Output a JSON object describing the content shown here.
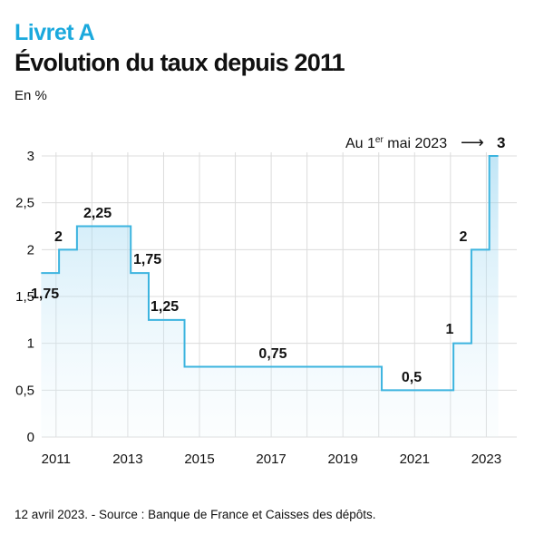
{
  "colors": {
    "accent": "#1ba9dd",
    "line": "#3cb4df",
    "grid": "#dcdcdc",
    "text": "#111111"
  },
  "header": {
    "kicker": "Livret A",
    "title": "Évolution du taux depuis 2011",
    "unit": "En %"
  },
  "annotation": {
    "prefix": "Au 1",
    "sup": "er",
    "suffix": " mai 2023",
    "arrow": "⟶",
    "value": "3"
  },
  "footer": {
    "source": "12 avril 2023. - Source : Banque de France et Caisses des dépôts."
  },
  "chart_data": {
    "type": "area",
    "step": true,
    "title": "Évolution du taux depuis 2011",
    "ylabel": "En %",
    "xlim": [
      2010.6,
      2023.85
    ],
    "ylim": [
      0,
      3
    ],
    "grid": true,
    "x_ticks": [
      "2011",
      "2013",
      "2015",
      "2017",
      "2019",
      "2021",
      "2023"
    ],
    "y_ticks": [
      "0",
      "0,5",
      "1",
      "1,5",
      "2",
      "2,5",
      "3"
    ],
    "series": [
      {
        "steps": [
          {
            "start": "2010-08-01",
            "end": "2011-02-01",
            "value": 1.75
          },
          {
            "start": "2011-02-01",
            "end": "2011-08-01",
            "value": 2
          },
          {
            "start": "2011-08-01",
            "end": "2013-02-01",
            "value": 2.25
          },
          {
            "start": "2013-02-01",
            "end": "2013-08-01",
            "value": 1.75
          },
          {
            "start": "2013-08-01",
            "end": "2014-08-01",
            "value": 1.25
          },
          {
            "start": "2014-08-01",
            "end": "2020-02-01",
            "value": 0.75
          },
          {
            "start": "2020-02-01",
            "end": "2022-02-01",
            "value": 0.5
          },
          {
            "start": "2022-02-01",
            "end": "2022-08-01",
            "value": 1
          },
          {
            "start": "2022-08-01",
            "end": "2023-02-01",
            "value": 2
          },
          {
            "start": "2023-02-01",
            "end": "2023-05-01",
            "value": 3
          }
        ]
      }
    ],
    "labels": [
      "1,75",
      "2",
      "2,25",
      "1,75",
      "1,25",
      "0,75",
      "0,5",
      "1",
      "2"
    ]
  }
}
